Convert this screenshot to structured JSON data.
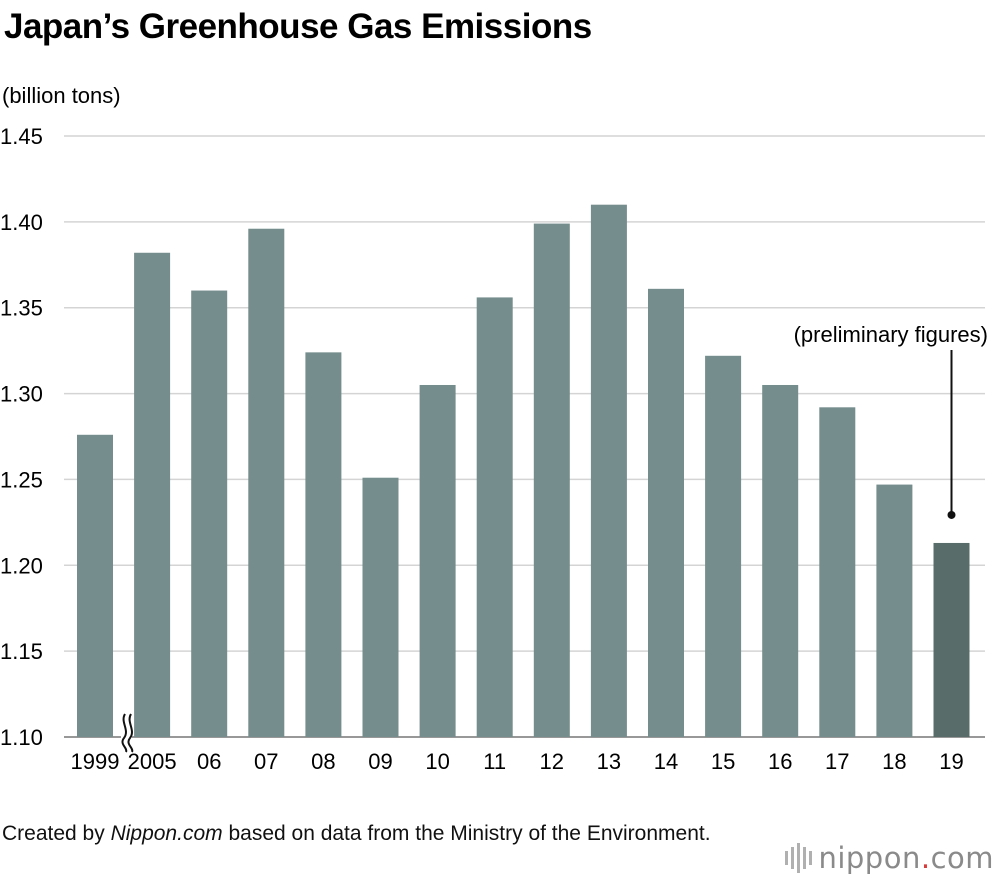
{
  "chart_data": {
    "type": "bar",
    "title": "Japan’s Greenhouse Gas Emissions",
    "ylabel": "(billion tons)",
    "xlabel": "",
    "ylim": [
      1.1,
      1.45
    ],
    "yticks": [
      "1.10",
      "1.15",
      "1.20",
      "1.25",
      "1.30",
      "1.35",
      "1.40",
      "1.45"
    ],
    "ytick_values": [
      1.1,
      1.15,
      1.2,
      1.25,
      1.3,
      1.35,
      1.4,
      1.45
    ],
    "categories": [
      "1999",
      "2005",
      "06",
      "07",
      "08",
      "09",
      "10",
      "11",
      "12",
      "13",
      "14",
      "15",
      "16",
      "17",
      "18",
      "19"
    ],
    "values": [
      1.276,
      1.382,
      1.36,
      1.396,
      1.324,
      1.251,
      1.305,
      1.356,
      1.399,
      1.41,
      1.361,
      1.322,
      1.305,
      1.292,
      1.247,
      1.213
    ],
    "highlight_index": 15,
    "axis_break_between": [
      "1999",
      "2005"
    ],
    "annotation": {
      "text": "(preliminary figures)",
      "target": "19"
    },
    "colors": {
      "bar": "#758d8c",
      "highlight": "#586c6a",
      "grid": "#d4d4d4"
    }
  },
  "footer": {
    "prefix": "Created by ",
    "source": "Nippon.com",
    "suffix": " based on data from the Ministry of the Environment."
  },
  "logo": {
    "word": "nippon",
    "dot": ".",
    "tld": "com"
  }
}
